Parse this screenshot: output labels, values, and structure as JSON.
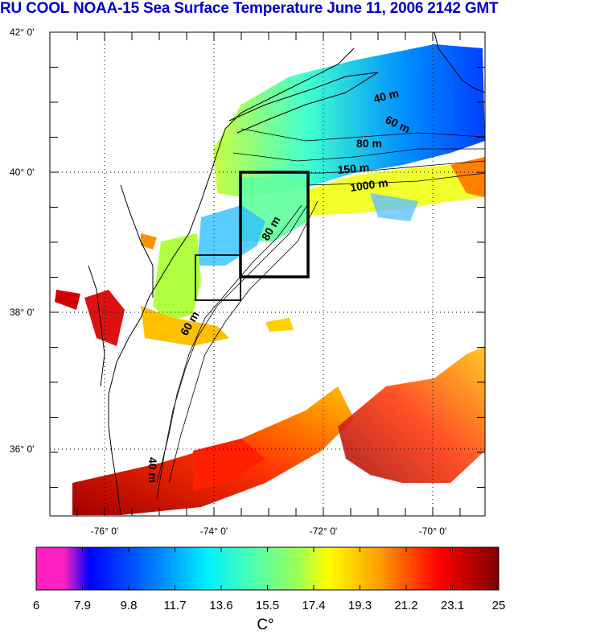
{
  "title": "RU COOL  NOAA-15 Sea Surface Temperature June 11, 2006 2142 GMT",
  "map": {
    "lat_labels": [
      "42° 0'",
      "40° 0'",
      "38° 0'",
      "36° 0'"
    ],
    "lon_labels": [
      "-76° 0'",
      "-74° 0'",
      "-72° 0'",
      "-70° 0'"
    ],
    "contour_labels": [
      "40 m",
      "60 m",
      "80 m",
      "150 m",
      "1000 m",
      "80 m",
      "60 m",
      "40 m"
    ]
  },
  "colorbar": {
    "ticks": [
      "6",
      "7.9",
      "9.8",
      "11.7",
      "13.6",
      "15.5",
      "17.4",
      "19.3",
      "21.2",
      "23.1",
      "25"
    ],
    "unit": "C°",
    "range": [
      6,
      25
    ],
    "colors": [
      "#ff20c0",
      "#0000ff",
      "#00f0ff",
      "#ffff00",
      "#ff0000",
      "#800000"
    ]
  }
}
